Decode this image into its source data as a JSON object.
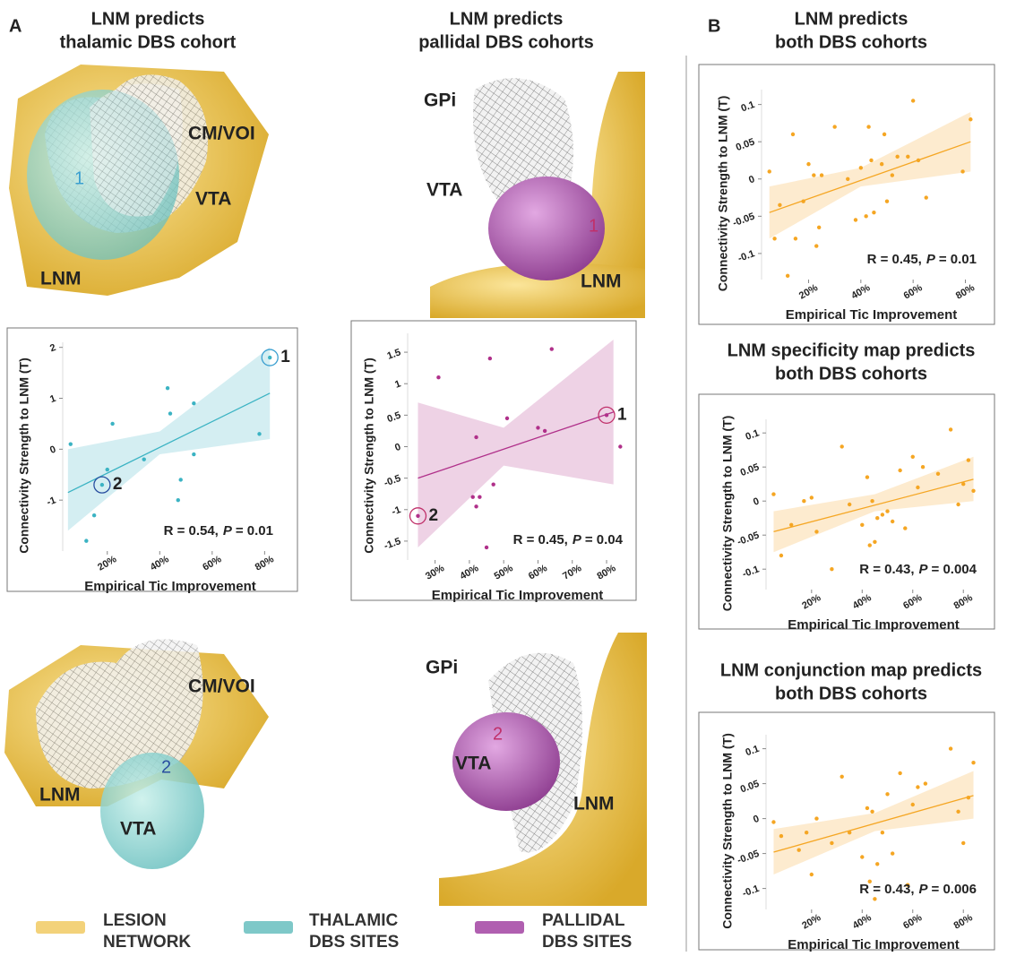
{
  "panels": {
    "a": "A",
    "b": "B"
  },
  "renders": {
    "thalamic_top": {
      "cm_voi": "CM/VOI",
      "vta": "VTA",
      "lnm": "LNM",
      "site": "1"
    },
    "pallidal_top": {
      "gpi": "GPi",
      "vta": "VTA",
      "lnm": "LNM",
      "site": "1"
    },
    "thalamic_bottom": {
      "cm_voi": "CM/VOI",
      "vta": "VTA",
      "lnm": "LNM",
      "site": "2"
    },
    "pallidal_bottom": {
      "gpi": "GPi",
      "vta": "VTA",
      "lnm": "LNM",
      "site": "2"
    }
  },
  "legend": [
    {
      "lines": [
        "LESION",
        "NETWORK"
      ],
      "color": "#f3d27a"
    },
    {
      "lines": [
        "THALAMIC",
        "DBS SITES"
      ],
      "color": "#7ec8c8"
    },
    {
      "lines": [
        "PALLIDAL",
        "DBS SITES"
      ],
      "color": "#b05fb0"
    }
  ],
  "chart_data": [
    {
      "type": "scatter",
      "title": [
        "LNM predicts",
        "thalamic DBS cohort"
      ],
      "x_label": "Empirical Tic Improvement",
      "y_label": "Connectivity Strength to LNM (T)",
      "color": "#3bb3c3",
      "x": [
        6,
        12,
        15,
        18,
        20,
        22,
        34,
        43,
        44,
        47,
        48,
        53,
        53,
        78,
        82
      ],
      "values": [
        0.1,
        -1.8,
        -1.3,
        -0.7,
        -0.4,
        0.5,
        -0.2,
        1.2,
        0.7,
        -1.0,
        -0.6,
        -0.1,
        0.9,
        0.3,
        1.8
      ],
      "fit": {
        "x": [
          5,
          82
        ],
        "values": [
          -0.85,
          1.1
        ]
      },
      "band": {
        "x": [
          5,
          40,
          82
        ],
        "lower": [
          -1.6,
          -0.1,
          0.2
        ],
        "upper": [
          0,
          0.35,
          2.0
        ]
      },
      "highlights": [
        {
          "x": 82,
          "y": 1.8,
          "label": "1",
          "color": "#3a9fd0"
        },
        {
          "x": 18,
          "y": -0.7,
          "label": "2",
          "color": "#2a4fa0"
        }
      ],
      "annotation": {
        "r": "R = 0.54,",
        "p_label": "P",
        "p": "= 0.01"
      },
      "xlim": [
        3,
        85
      ],
      "ylim": [
        -2,
        2.1
      ],
      "xticks": [
        {
          "value": 20,
          "label": "20%"
        },
        {
          "value": 40,
          "label": "40%"
        },
        {
          "value": 60,
          "label": "60%"
        },
        {
          "value": 80,
          "label": "80%"
        }
      ],
      "yticks": [
        2,
        1,
        0,
        -1
      ]
    },
    {
      "type": "scatter",
      "title": [
        "LNM predicts",
        "pallidal DBS cohorts"
      ],
      "x_label": "Empirical Tic Improvement",
      "y_label": "Connectivity Strength to LNM (T)",
      "color": "#b0308a",
      "x": [
        25,
        31,
        41,
        42,
        42,
        43,
        45,
        46,
        47,
        51,
        60,
        62,
        64,
        80,
        84
      ],
      "values": [
        -1.1,
        1.1,
        -0.8,
        0.15,
        -0.95,
        -0.8,
        -1.6,
        1.4,
        -0.6,
        0.45,
        0.3,
        0.25,
        1.55,
        0.5,
        0
      ],
      "fit": {
        "x": [
          25,
          82
        ],
        "values": [
          -0.5,
          0.55
        ]
      },
      "band": {
        "x": [
          25,
          50,
          82
        ],
        "lower": [
          -1.6,
          -0.3,
          -0.6
        ],
        "upper": [
          0.7,
          0.3,
          1.7
        ]
      },
      "highlights": [
        {
          "x": 80,
          "y": 0.5,
          "label": "1",
          "color": "#c0306a"
        },
        {
          "x": 25,
          "y": -1.1,
          "label": "2",
          "color": "#c0306a"
        }
      ],
      "annotation": {
        "r": "R = 0.45,",
        "p_label": "P",
        "p": "= 0.04"
      },
      "xlim": [
        22,
        86
      ],
      "ylim": [
        -1.8,
        1.8
      ],
      "xticks": [
        {
          "value": 30,
          "label": "30%"
        },
        {
          "value": 40,
          "label": "40%"
        },
        {
          "value": 50,
          "label": "50%"
        },
        {
          "value": 60,
          "label": "60%"
        },
        {
          "value": 70,
          "label": "70%"
        },
        {
          "value": 80,
          "label": "80%"
        }
      ],
      "yticks": [
        1.5,
        1,
        0.5,
        0,
        -0.5,
        -1,
        -1.5
      ]
    },
    {
      "type": "scatter",
      "title": [
        "LNM predicts",
        "both DBS cohorts"
      ],
      "x_label": "Empirical Tic Improvement",
      "y_label": "Connectivity Strength to LNM (T)",
      "color": "#f5a623",
      "x": [
        5,
        7,
        9,
        12,
        14,
        15,
        18,
        20,
        22,
        23,
        24,
        25,
        30,
        35,
        38,
        40,
        42,
        43,
        44,
        45,
        48,
        49,
        50,
        52,
        54,
        58,
        60,
        62,
        65,
        79,
        82
      ],
      "values": [
        0.01,
        -0.08,
        -0.035,
        -0.13,
        0.06,
        -0.08,
        -0.03,
        0.02,
        0.005,
        -0.09,
        -0.065,
        0.005,
        0.07,
        0.0,
        -0.055,
        0.015,
        -0.05,
        0.07,
        0.025,
        -0.045,
        0.02,
        0.06,
        -0.03,
        0.005,
        0.03,
        0.03,
        0.105,
        0.025,
        -0.025,
        0.01,
        0.08
      ],
      "fit": {
        "x": [
          5,
          82
        ],
        "values": [
          -0.045,
          0.05
        ]
      },
      "band": {
        "x": [
          5,
          40,
          82
        ],
        "lower": [
          -0.08,
          -0.01,
          0.01
        ],
        "upper": [
          -0.01,
          0.015,
          0.09
        ]
      },
      "highlights": [],
      "annotation": {
        "r": "R = 0.45,",
        "p_label": "P",
        "p": "= 0.01"
      },
      "xlim": [
        2,
        86
      ],
      "ylim": [
        -0.135,
        0.12
      ],
      "xticks": [
        {
          "value": 20,
          "label": "20%"
        },
        {
          "value": 40,
          "label": "40%"
        },
        {
          "value": 60,
          "label": "60%"
        },
        {
          "value": 80,
          "label": "80%"
        }
      ],
      "yticks": [
        0.1,
        0.05,
        0,
        -0.05,
        -0.1
      ]
    },
    {
      "type": "scatter",
      "title": [
        "LNM specificity map predicts",
        "both DBS cohorts"
      ],
      "x_label": "Empirical Tic Improvement",
      "y_label": "Connectivity Strength to LNM (T)",
      "color": "#f5a623",
      "x": [
        5,
        8,
        12,
        17,
        20,
        22,
        28,
        32,
        35,
        40,
        42,
        43,
        44,
        45,
        46,
        48,
        50,
        52,
        55,
        57,
        60,
        62,
        64,
        70,
        75,
        78,
        80,
        82,
        84
      ],
      "values": [
        0.01,
        -0.08,
        -0.035,
        0.0,
        0.005,
        -0.045,
        -0.1,
        0.08,
        -0.005,
        -0.035,
        0.035,
        -0.065,
        0.0,
        -0.06,
        -0.025,
        -0.02,
        -0.015,
        -0.03,
        0.045,
        -0.04,
        0.065,
        0.02,
        0.05,
        0.04,
        0.105,
        -0.005,
        0.025,
        0.06,
        0.015
      ],
      "fit": {
        "x": [
          5,
          84
        ],
        "values": [
          -0.045,
          0.032
        ]
      },
      "band": {
        "x": [
          5,
          45,
          84
        ],
        "lower": [
          -0.075,
          -0.015,
          0.0
        ],
        "upper": [
          -0.015,
          0.01,
          0.065
        ]
      },
      "highlights": [],
      "annotation": {
        "r": "R = 0.43,",
        "p_label": "P",
        "p": "= 0.004"
      },
      "xlim": [
        2,
        87
      ],
      "ylim": [
        -0.13,
        0.12
      ],
      "xticks": [
        {
          "value": 20,
          "label": "20%"
        },
        {
          "value": 40,
          "label": "40%"
        },
        {
          "value": 60,
          "label": "60%"
        },
        {
          "value": 80,
          "label": "80%"
        }
      ],
      "yticks": [
        0.1,
        0.05,
        0,
        -0.05,
        -0.1
      ]
    },
    {
      "type": "scatter",
      "title": [
        "LNM conjunction map predicts",
        "both DBS cohorts"
      ],
      "x_label": "Empirical Tic Improvement",
      "y_label": "Connectivity Strength to LNM (T)",
      "color": "#f5a623",
      "x": [
        5,
        8,
        15,
        18,
        20,
        22,
        28,
        32,
        35,
        40,
        42,
        43,
        44,
        45,
        46,
        48,
        50,
        52,
        55,
        58,
        60,
        62,
        65,
        75,
        78,
        80,
        82,
        84
      ],
      "values": [
        -0.005,
        -0.025,
        -0.045,
        -0.02,
        -0.08,
        0.0,
        -0.035,
        0.06,
        -0.02,
        -0.055,
        0.015,
        -0.09,
        0.01,
        -0.115,
        -0.065,
        -0.02,
        0.035,
        -0.05,
        0.065,
        -0.095,
        0.02,
        0.045,
        0.05,
        0.1,
        0.01,
        -0.035,
        0.03,
        0.08
      ],
      "fit": {
        "x": [
          5,
          84
        ],
        "values": [
          -0.048,
          0.033
        ]
      },
      "band": {
        "x": [
          5,
          45,
          84
        ],
        "lower": [
          -0.08,
          -0.018,
          0.0
        ],
        "upper": [
          -0.015,
          0.008,
          0.068
        ]
      },
      "highlights": [],
      "annotation": {
        "r": "R = 0.43,",
        "p_label": "P",
        "p": "= 0.006"
      },
      "xlim": [
        2,
        87
      ],
      "ylim": [
        -0.13,
        0.12
      ],
      "xticks": [
        {
          "value": 20,
          "label": "20%"
        },
        {
          "value": 40,
          "label": "40%"
        },
        {
          "value": 60,
          "label": "60%"
        },
        {
          "value": 80,
          "label": "80%"
        }
      ],
      "yticks": [
        0.1,
        0.05,
        0,
        -0.05,
        -0.1
      ]
    }
  ]
}
